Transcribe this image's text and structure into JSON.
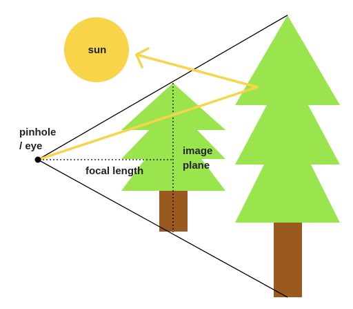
{
  "colors": {
    "sun": "#F7D448",
    "foliage": "#9AE54E",
    "trunk": "#9A5A1E",
    "light_ray": "#F7D448",
    "sight_lines": "#000000",
    "pinhole": "#000000"
  },
  "labels": {
    "sun": "sun",
    "pinhole_line1": "pinhole",
    "pinhole_line2": "/ eye",
    "focal_length": "focal length",
    "image_plane_line1": "image",
    "image_plane_line2": "plane"
  }
}
